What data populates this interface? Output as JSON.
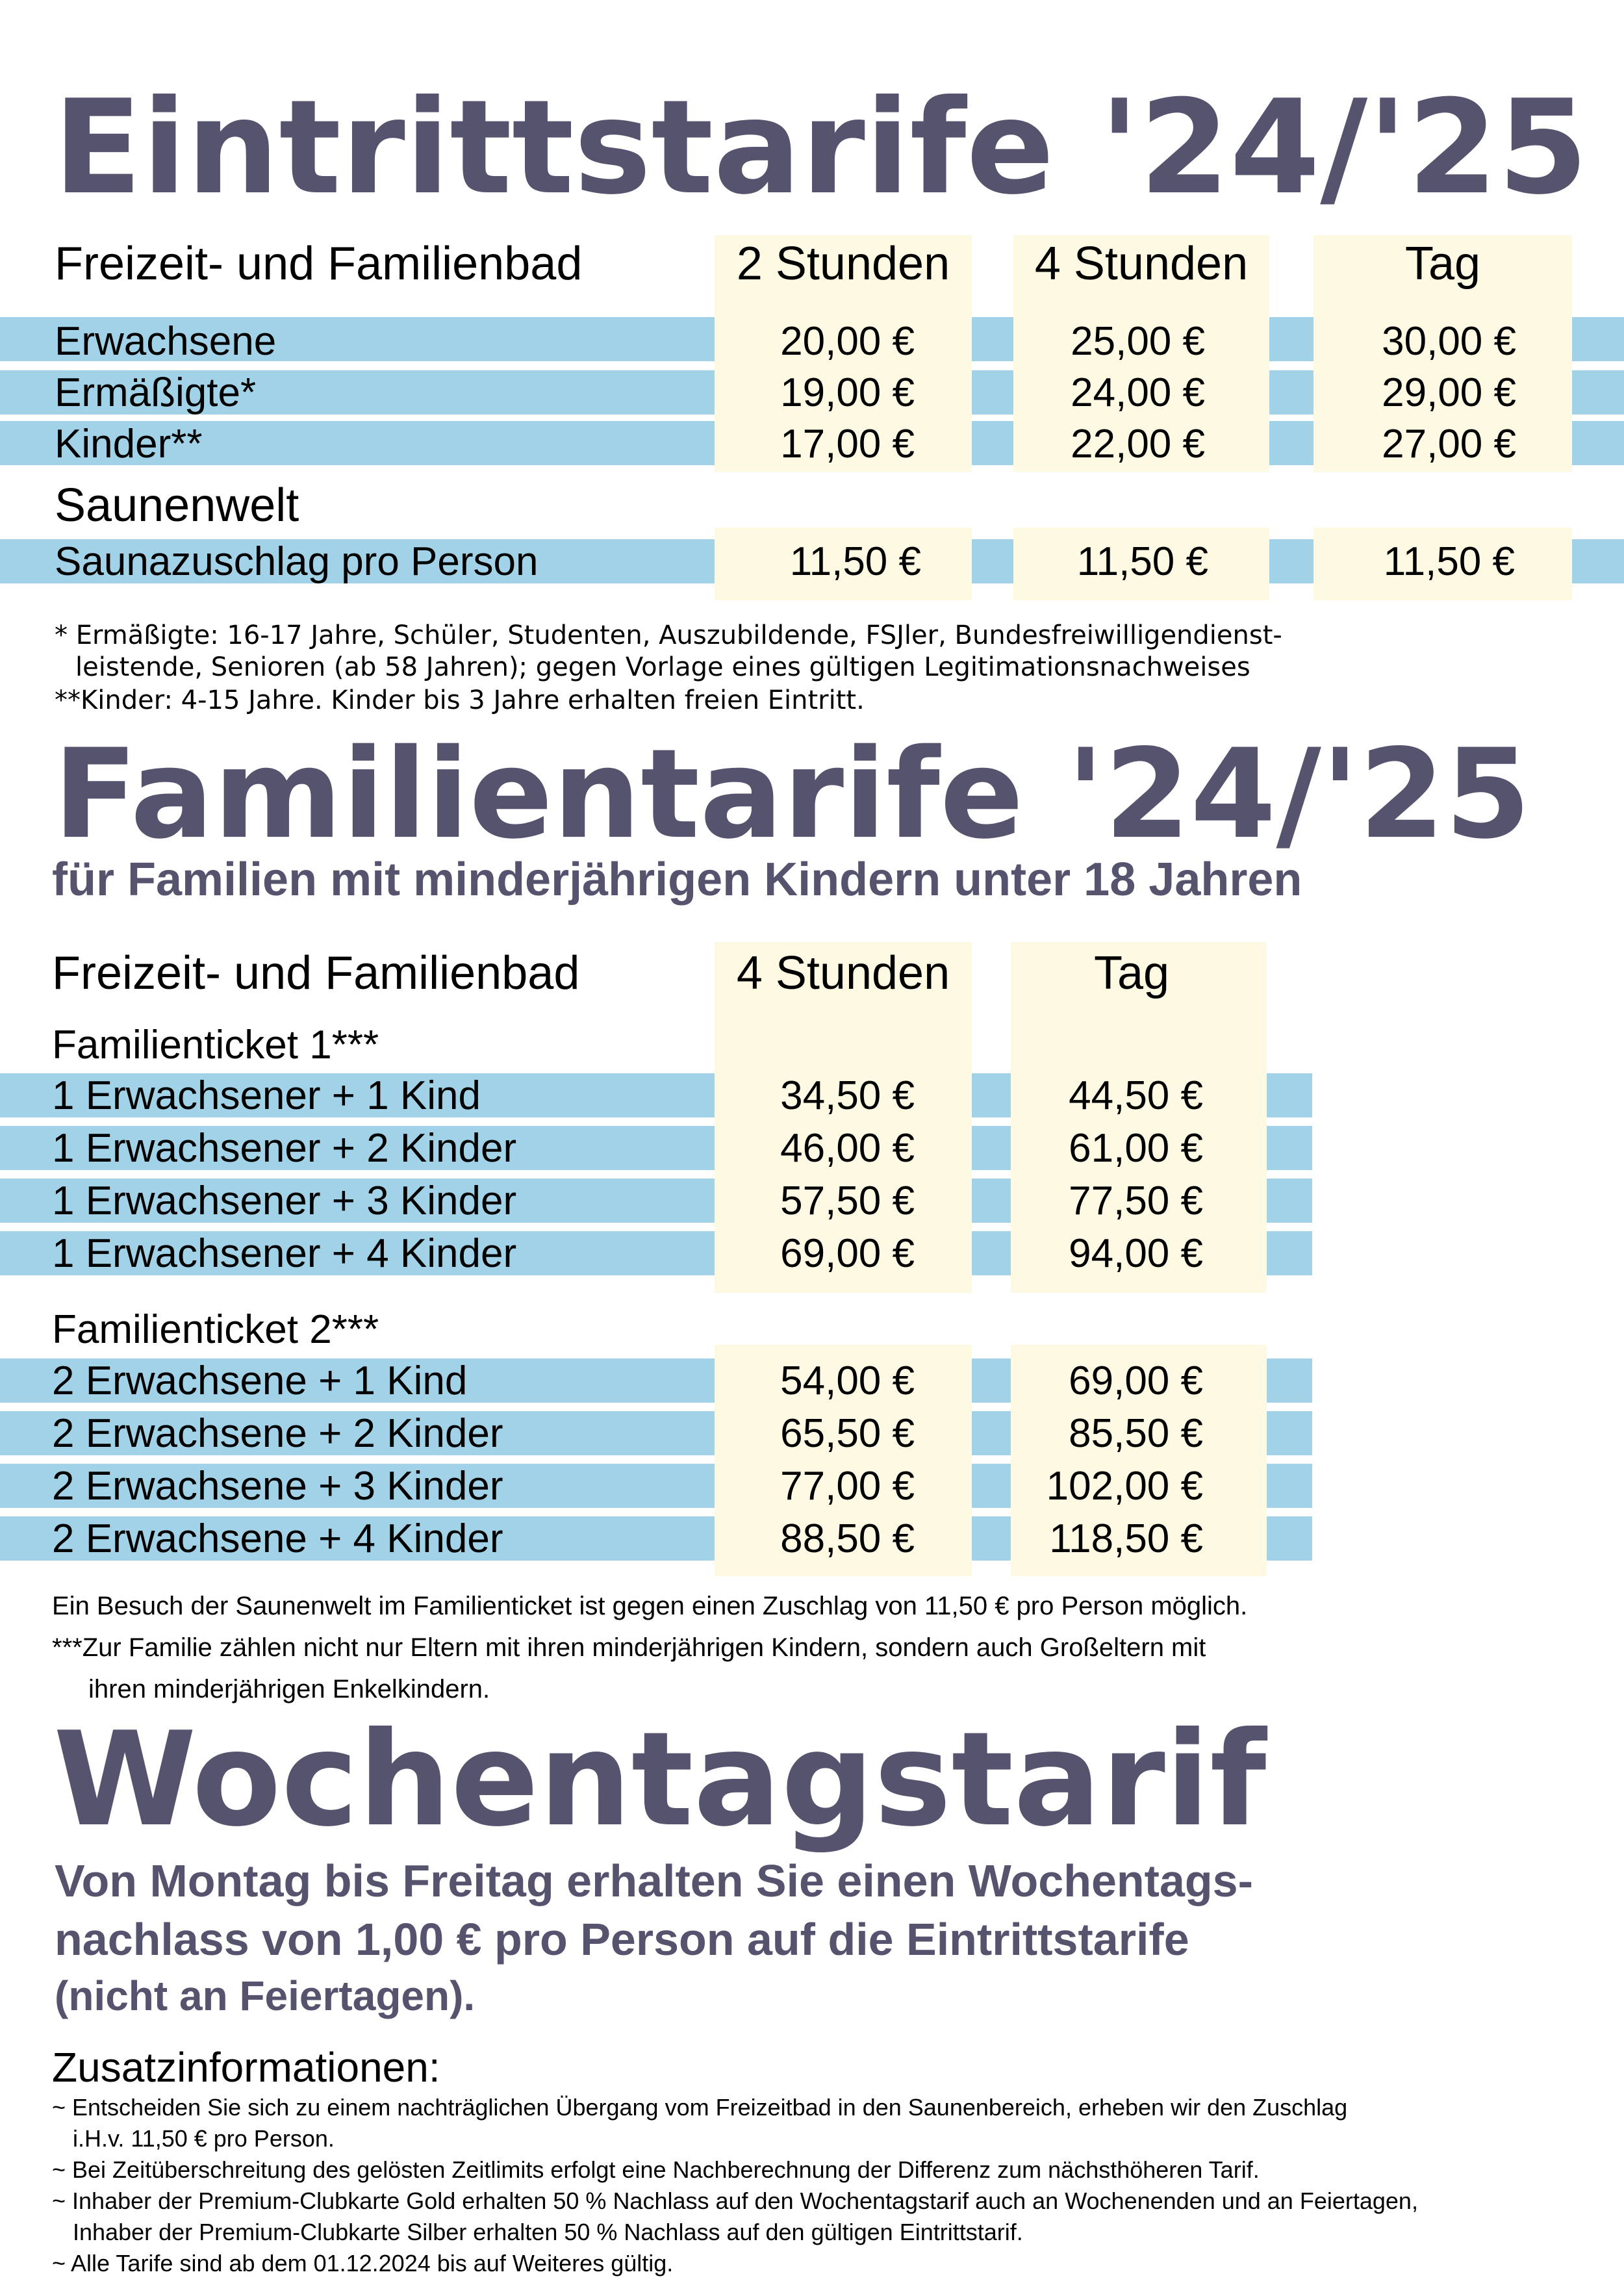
{
  "entry": {
    "title": "Eintrittstarife '24/'25",
    "header": {
      "label": "Freizeit- und Familienbad",
      "cols": [
        "2 Stunden",
        "4 Stunden",
        "Tag"
      ]
    },
    "rows": [
      {
        "label": "Erwachsene",
        "values": [
          "20,00 €",
          "25,00 €",
          "30,00 €"
        ]
      },
      {
        "label": "Ermäßigte*",
        "values": [
          "19,00 €",
          "24,00 €",
          "29,00 €"
        ]
      },
      {
        "label": "Kinder**",
        "values": [
          "17,00 €",
          "22,00 €",
          "27,00 €"
        ]
      }
    ],
    "sauna_title": "Saunenwelt",
    "sauna_row": {
      "label": "Saunazuschlag pro Person",
      "values": [
        "11,50 €",
        "11,50 €",
        "11,50 €"
      ]
    },
    "notes": [
      "*  Ermäßigte: 16-17 Jahre, Schüler, Studenten, Auszubildende, FSJler, Bundesfreiwilligendienst-",
      "leistende, Senioren (ab 58 Jahren); gegen Vorlage eines gültigen Legitimationsnachweises",
      "**Kinder: 4-15 Jahre. Kinder bis 3 Jahre erhalten freien Eintritt."
    ]
  },
  "family": {
    "title": "Familientarife '24/'25",
    "subtitle": "für Familien mit minderjährigen Kindern unter 18 Jahren",
    "header": {
      "label": "Freizeit- und Familienbad",
      "cols": [
        "4 Stunden",
        "Tag"
      ]
    },
    "ticket1": {
      "title": "Familienticket 1***",
      "rows": [
        {
          "label": "1 Erwachsener + 1 Kind",
          "values": [
            "34,50 €",
            "44,50 €"
          ]
        },
        {
          "label": "1 Erwachsener + 2 Kinder",
          "values": [
            "46,00 €",
            "61,00 €"
          ]
        },
        {
          "label": "1 Erwachsener + 3 Kinder",
          "values": [
            "57,50 €",
            "77,50 €"
          ]
        },
        {
          "label": "1 Erwachsener + 4 Kinder",
          "values": [
            "69,00 €",
            "94,00 €"
          ]
        }
      ]
    },
    "ticket2": {
      "title": "Familienticket 2***",
      "rows": [
        {
          "label": "2 Erwachsene + 1 Kind",
          "values": [
            "54,00 €",
            "69,00 €"
          ]
        },
        {
          "label": "2 Erwachsene + 2 Kinder",
          "values": [
            "65,50 €",
            "85,50 €"
          ]
        },
        {
          "label": "2 Erwachsene + 3 Kinder",
          "values": [
            "77,00 €",
            "102,00 €"
          ]
        },
        {
          "label": "2 Erwachsene + 4 Kinder",
          "values": [
            "88,50 €",
            "118,50 €"
          ]
        }
      ]
    },
    "notes": [
      "Ein Besuch der Saunenwelt im Familienticket ist gegen einen Zuschlag von 11,50 € pro Person möglich.",
      "***Zur Familie zählen nicht nur Eltern mit ihren minderjährigen Kindern, sondern auch Großeltern mit",
      "ihren minderjährigen Enkelkindern."
    ]
  },
  "weekday": {
    "title": "Wochentagstarif",
    "lines": [
      "Von Montag bis Freitag erhalten Sie einen Wochentags-",
      "nachlass von 1,00 € pro Person auf die Eintrittstarife",
      "(nicht an Feiertagen)."
    ]
  },
  "extra": {
    "title": "Zusatzinformationen:",
    "lines": [
      "~ Entscheiden Sie sich zu einem nachträglichen Übergang vom Freizeitbad in den Saunenbereich,  erheben wir den Zuschlag",
      "i.H.v. 11,50 € pro Person.",
      "~ Bei Zeitüberschreitung des gelösten Zeitlimits erfolgt eine Nachberechnung der Differenz zum nächsthöheren Tarif.",
      "~ Inhaber der Premium-Clubkarte Gold erhalten 50 % Nachlass auf den Wochentagstarif auch an Wochenenden und an Feiertagen,",
      "Inhaber der Premium-Clubkarte Silber erhalten 50 % Nachlass auf den gültigen Eintrittstarif.",
      "~ Alle Tarife sind ab dem 01.12.2024 bis auf Weiteres gültig."
    ]
  },
  "colors": {
    "title": "#56536e",
    "band": "#a2d2e7",
    "column": "#fdf9e2"
  }
}
